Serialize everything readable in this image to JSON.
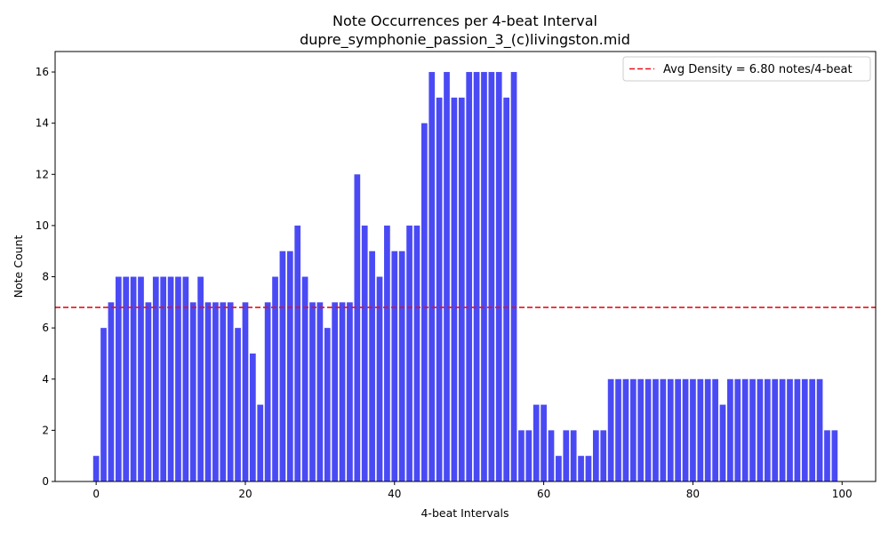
{
  "chart_data": {
    "type": "bar",
    "title": "Note Occurrences per 4-beat Interval",
    "subtitle": "dupre_symphonie_passion_3_(c)livingston.mid",
    "xlabel": "4-beat Intervals",
    "ylabel": "Note Count",
    "xlim": [
      -5.5,
      104.5
    ],
    "ylim": [
      0,
      16.8
    ],
    "xticks": [
      0,
      20,
      40,
      60,
      80,
      100
    ],
    "yticks": [
      0,
      2,
      4,
      6,
      8,
      10,
      12,
      14,
      16
    ],
    "grid": false,
    "bar_color": "#4a4af5",
    "x": [
      0,
      1,
      2,
      3,
      4,
      5,
      6,
      7,
      8,
      9,
      10,
      11,
      12,
      13,
      14,
      15,
      16,
      17,
      18,
      19,
      20,
      21,
      22,
      23,
      24,
      25,
      26,
      27,
      28,
      29,
      30,
      31,
      32,
      33,
      34,
      35,
      36,
      37,
      38,
      39,
      40,
      41,
      42,
      43,
      44,
      45,
      46,
      47,
      48,
      49,
      50,
      51,
      52,
      53,
      54,
      55,
      56,
      57,
      58,
      59,
      60,
      61,
      62,
      63,
      64,
      65,
      66,
      67,
      68,
      69,
      70,
      71,
      72,
      73,
      74,
      75,
      76,
      77,
      78,
      79,
      80,
      81,
      82,
      83,
      84,
      85,
      86,
      87,
      88,
      89,
      90,
      91,
      92,
      93,
      94,
      95,
      96,
      97,
      98,
      99
    ],
    "values": [
      1,
      6,
      7,
      8,
      8,
      8,
      8,
      7,
      8,
      8,
      8,
      8,
      8,
      7,
      8,
      7,
      7,
      7,
      7,
      6,
      7,
      5,
      3,
      7,
      8,
      9,
      9,
      10,
      8,
      7,
      7,
      6,
      7,
      7,
      7,
      12,
      10,
      9,
      8,
      10,
      9,
      9,
      10,
      10,
      14,
      16,
      15,
      16,
      15,
      15,
      16,
      16,
      16,
      16,
      16,
      15,
      16,
      2,
      2,
      3,
      3,
      2,
      1,
      2,
      2,
      1,
      1,
      2,
      2,
      4,
      4,
      4,
      4,
      4,
      4,
      4,
      4,
      4,
      4,
      4,
      4,
      4,
      4,
      4,
      3,
      4,
      4,
      4,
      4,
      4,
      4,
      4,
      4,
      4,
      4,
      4,
      4,
      4,
      2,
      2
    ],
    "reference_line": {
      "orientation": "horizontal",
      "y": 6.8,
      "color": "#e8101a",
      "style": "dashed",
      "label": "Avg Density = 6.80 notes/4-beat"
    },
    "legend_position": "top-right"
  }
}
